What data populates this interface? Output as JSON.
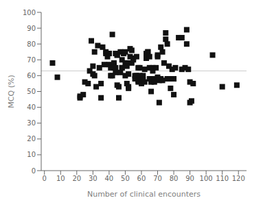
{
  "chart_data": {
    "type": "scatter",
    "xlabel": "Number of clinical encounters",
    "ylabel": "MCQ (%)",
    "xlim": [
      -2,
      125
    ],
    "ylim": [
      0,
      100
    ],
    "xticks": [
      0,
      10,
      20,
      30,
      40,
      50,
      60,
      70,
      80,
      90,
      100,
      110,
      120
    ],
    "yticks": [
      0,
      10,
      20,
      30,
      40,
      50,
      60,
      70,
      80,
      90,
      100
    ],
    "grid": false,
    "color": "#111111",
    "marker": "square",
    "hline": 63,
    "x": [
      5,
      8,
      22,
      22,
      24,
      25,
      27,
      28,
      29,
      30,
      30,
      31,
      31,
      32,
      33,
      34,
      35,
      35,
      36,
      37,
      38,
      38,
      39,
      40,
      40,
      40,
      41,
      41,
      42,
      42,
      43,
      43,
      43,
      44,
      44,
      44,
      45,
      45,
      45,
      46,
      46,
      47,
      47,
      48,
      48,
      48,
      49,
      49,
      50,
      50,
      50,
      51,
      51,
      51,
      52,
      52,
      52,
      53,
      53,
      54,
      54,
      55,
      55,
      56,
      56,
      57,
      57,
      58,
      58,
      58,
      59,
      59,
      60,
      60,
      61,
      61,
      62,
      62,
      63,
      63,
      64,
      64,
      65,
      65,
      65,
      66,
      66,
      67,
      67,
      68,
      68,
      69,
      70,
      70,
      70,
      71,
      71,
      72,
      72,
      73,
      73,
      74,
      75,
      75,
      76,
      76,
      77,
      78,
      78,
      79,
      80,
      80,
      81,
      83,
      85,
      85,
      87,
      88,
      88,
      89,
      90,
      90,
      91,
      92,
      104,
      110,
      119
    ],
    "values": [
      68,
      59,
      47,
      46,
      48,
      56,
      55,
      63,
      82,
      66,
      61,
      75,
      60,
      53,
      79,
      65,
      55,
      46,
      78,
      67,
      75,
      74,
      72,
      74,
      67,
      74,
      65,
      60,
      86,
      60,
      68,
      67,
      65,
      74,
      65,
      62,
      73,
      73,
      54,
      53,
      46,
      75,
      62,
      70,
      65,
      65,
      74,
      74,
      60,
      75,
      68,
      68,
      66,
      55,
      61,
      52,
      53,
      77,
      72,
      76,
      68,
      71,
      70,
      60,
      58,
      72,
      60,
      65,
      56,
      57,
      65,
      60,
      57,
      55,
      60,
      57,
      56,
      64,
      74,
      71,
      75,
      75,
      72,
      65,
      58,
      56,
      50,
      65,
      63,
      58,
      56,
      65,
      59,
      73,
      72,
      43,
      57,
      58,
      78,
      75,
      57,
      68,
      87,
      83,
      58,
      80,
      66,
      58,
      52,
      64,
      58,
      48,
      65,
      84,
      84,
      64,
      65,
      89,
      80,
      64,
      56,
      43,
      44,
      55,
      73,
      53,
      54
    ]
  }
}
